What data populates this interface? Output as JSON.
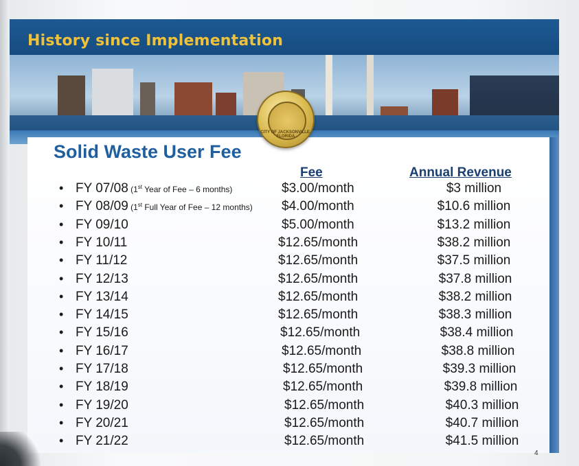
{
  "header": {
    "title": "History since Implementation"
  },
  "seal": {
    "text": "CITY OF JACKSONVILLE, FLORIDA"
  },
  "slide": {
    "title": "Solid Waste User Fee",
    "col_fee": "Fee",
    "col_revenue": "Annual Revenue",
    "page_number": "4"
  },
  "rows": [
    {
      "fy": "FY 07/08",
      "note_pre": "(1",
      "note_sup": "st",
      "note_post": " Year of Fee – 6 months)",
      "fee": "$3.00/month",
      "revenue": "$3 million"
    },
    {
      "fy": "FY 08/09",
      "note_pre": "(1",
      "note_sup": "st",
      "note_post": " Full Year of Fee – 12 months)",
      "fee": "$4.00/month",
      "revenue": "$10.6 million"
    },
    {
      "fy": "FY 09/10",
      "note_pre": "",
      "note_sup": "",
      "note_post": "",
      "fee": "$5.00/month",
      "revenue": "$13.2 million"
    },
    {
      "fy": "FY 10/11",
      "note_pre": "",
      "note_sup": "",
      "note_post": "",
      "fee": "$12.65/month",
      "revenue": "$38.2 million"
    },
    {
      "fy": "FY 11/12",
      "note_pre": "",
      "note_sup": "",
      "note_post": "",
      "fee": "$12.65/month",
      "revenue": "$37.5 million"
    },
    {
      "fy": "FY 12/13",
      "note_pre": "",
      "note_sup": "",
      "note_post": "",
      "fee": "$12.65/month",
      "revenue": "$37.8 million"
    },
    {
      "fy": "FY 13/14",
      "note_pre": "",
      "note_sup": "",
      "note_post": "",
      "fee": "$12.65/month",
      "revenue": "$38.2 million"
    },
    {
      "fy": "FY 14/15",
      "note_pre": "",
      "note_sup": "",
      "note_post": "",
      "fee": "$12.65/month",
      "revenue": "$38.3 million"
    },
    {
      "fy": "FY 15/16",
      "note_pre": "",
      "note_sup": "",
      "note_post": "",
      "fee": "$12.65/month",
      "revenue": "$38.4 million"
    },
    {
      "fy": "FY 16/17",
      "note_pre": "",
      "note_sup": "",
      "note_post": "",
      "fee": "$12.65/month",
      "revenue": "$38.8 million"
    },
    {
      "fy": "FY 17/18",
      "note_pre": "",
      "note_sup": "",
      "note_post": "",
      "fee": "$12.65/month",
      "revenue": "$39.3 million"
    },
    {
      "fy": "FY 18/19",
      "note_pre": "",
      "note_sup": "",
      "note_post": "",
      "fee": "$12.65/month",
      "revenue": "$39.8 million"
    },
    {
      "fy": "FY 19/20",
      "note_pre": "",
      "note_sup": "",
      "note_post": "",
      "fee": "$12.65/month",
      "revenue": "$40.3 million"
    },
    {
      "fy": "FY 20/21",
      "note_pre": "",
      "note_sup": "",
      "note_post": "",
      "fee": "$12.65/month",
      "revenue": "$40.7 million"
    },
    {
      "fy": "FY 21/22",
      "note_pre": "",
      "note_sup": "",
      "note_post": "",
      "fee": "$12.65/month",
      "revenue": "$41.5 million"
    }
  ]
}
